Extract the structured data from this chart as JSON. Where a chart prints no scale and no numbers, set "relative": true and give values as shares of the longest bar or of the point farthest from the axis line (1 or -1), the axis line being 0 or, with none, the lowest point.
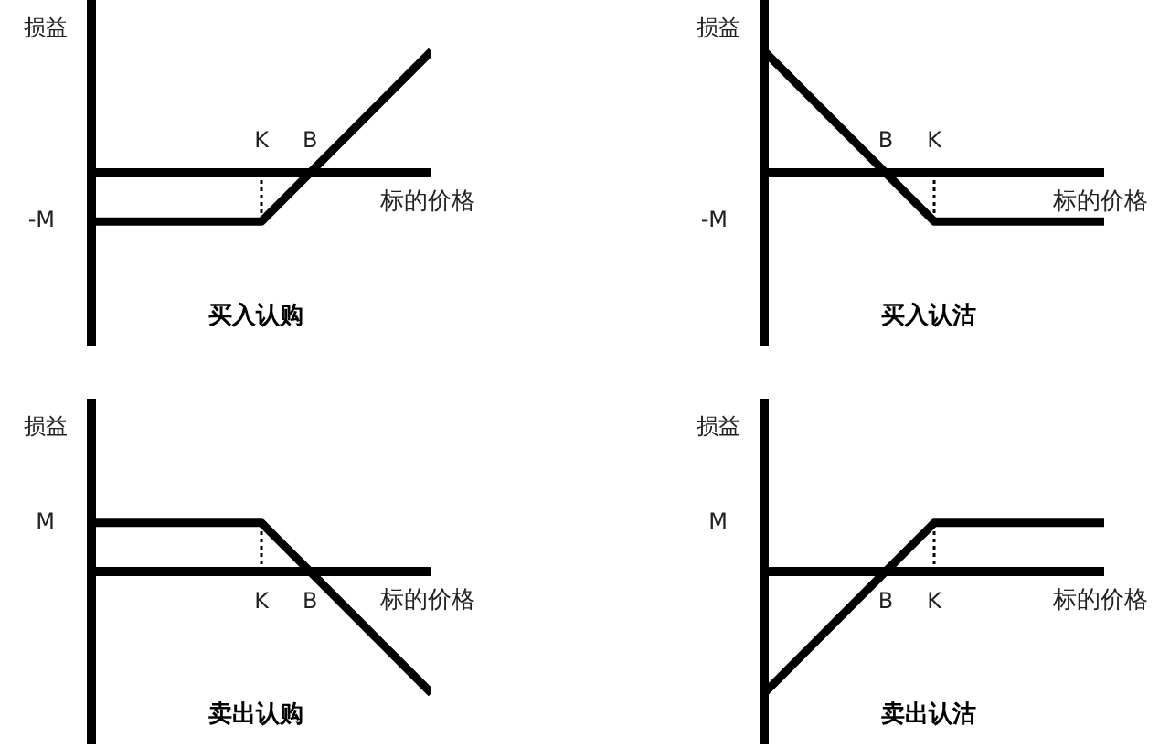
{
  "chart_data": [
    {
      "type": "line",
      "title": "买入认购",
      "xlabel": "标的价格",
      "ylabel": "损益",
      "relative": true,
      "categories": [
        null,
        null,
        null,
        null,
        null,
        null,
        null,
        "K",
        null,
        "B",
        null,
        null,
        null,
        null,
        null
      ],
      "series": [
        {
          "color": "#000000",
          "values": [
            -0.4,
            -0.4,
            -0.4,
            -0.4,
            -0.4,
            -0.4,
            -0.4,
            -0.4,
            -0.2,
            0,
            0.2,
            0.4,
            0.6,
            0.8,
            1
          ]
        },
        {
          "color": "#000000",
          "x": [
            "K",
            "K"
          ],
          "values": [
            0,
            -0.4
          ],
          "line_style": "dotted"
        }
      ],
      "annotations": [
        "-M"
      ]
    },
    {
      "type": "line",
      "title": "买入认沽",
      "xlabel": "标的价格",
      "ylabel": "损益",
      "relative": true,
      "categories": [
        null,
        null,
        null,
        null,
        null,
        "B",
        null,
        "K",
        null,
        null,
        null,
        null,
        null,
        null,
        null
      ],
      "series": [
        {
          "color": "#000000",
          "values": [
            1,
            0.8,
            0.6,
            0.4,
            0.2,
            0,
            -0.2,
            -0.4,
            -0.4,
            -0.4,
            -0.4,
            -0.4,
            -0.4,
            -0.4,
            -0.4
          ]
        },
        {
          "color": "#000000",
          "x": [
            "K",
            "K"
          ],
          "values": [
            0,
            -0.4
          ],
          "line_style": "dotted"
        }
      ],
      "annotations": [
        "-M"
      ]
    },
    {
      "type": "line",
      "title": "卖出认购",
      "xlabel": "标的价格",
      "ylabel": "损益",
      "relative": true,
      "categories": [
        null,
        null,
        null,
        null,
        null,
        null,
        null,
        "K",
        null,
        "B",
        null,
        null,
        null,
        null,
        null
      ],
      "series": [
        {
          "color": "#000000",
          "values": [
            0.4,
            0.4,
            0.4,
            0.4,
            0.4,
            0.4,
            0.4,
            0.4,
            0.2,
            0,
            -0.2,
            -0.4,
            -0.6,
            -0.8,
            -1
          ]
        },
        {
          "color": "#000000",
          "x": [
            "K",
            "K"
          ],
          "values": [
            0,
            0.4
          ],
          "line_style": "dotted"
        }
      ],
      "annotations": [
        "M"
      ]
    },
    {
      "type": "line",
      "title": "卖出认沽",
      "xlabel": "标的价格",
      "ylabel": "损益",
      "relative": true,
      "categories": [
        null,
        null,
        null,
        null,
        null,
        "B",
        null,
        "K",
        null,
        null,
        null,
        null,
        null,
        null,
        null
      ],
      "series": [
        {
          "color": "#000000",
          "values": [
            -1,
            -0.8,
            -0.6,
            -0.4,
            -0.2,
            0,
            0.2,
            0.4,
            0.4,
            0.4,
            0.4,
            0.4,
            0.4,
            0.4,
            0.4
          ]
        },
        {
          "color": "#000000",
          "x": [
            "K",
            "K"
          ],
          "values": [
            0,
            0.4
          ],
          "line_style": "dotted"
        }
      ],
      "annotations": [
        "M"
      ]
    }
  ]
}
